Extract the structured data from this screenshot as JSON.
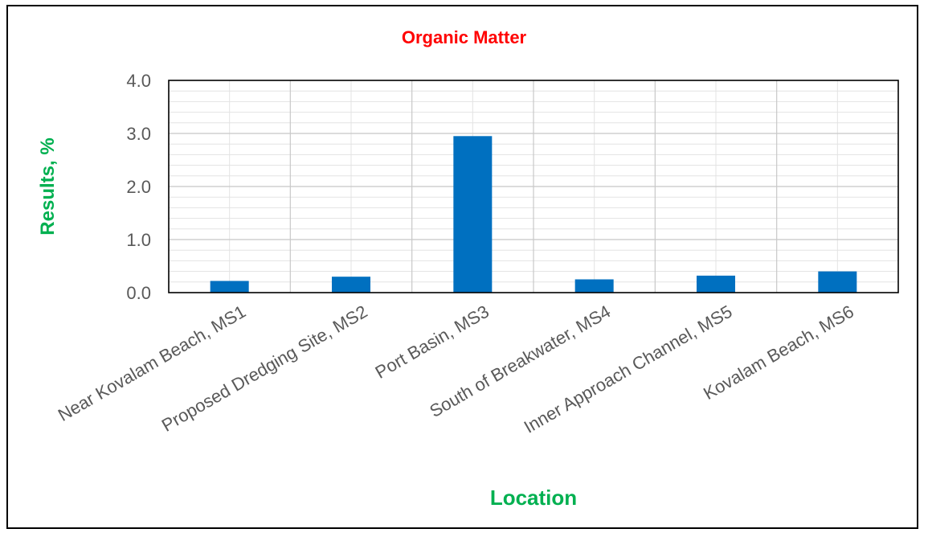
{
  "chart_data": {
    "type": "bar",
    "title": "Organic Matter",
    "xlabel": "Location",
    "ylabel": "Results, %",
    "categories": [
      "Near Kovalam Beach, MS1",
      "Proposed Dredging Site, MS2",
      "Port Basin, MS3",
      "South of Breakwater, MS4",
      "Inner Approach Channel, MS5",
      "Kovalam Beach, MS6"
    ],
    "values": [
      0.22,
      0.3,
      2.95,
      0.25,
      0.32,
      0.4
    ],
    "ylim": [
      0,
      4
    ],
    "yticks": [
      "0.0",
      "1.0",
      "2.0",
      "3.0",
      "4.0"
    ],
    "grid": true,
    "bar_color": "#0070c0",
    "title_color": "#ff0000",
    "axis_label_color": "#00b050"
  }
}
